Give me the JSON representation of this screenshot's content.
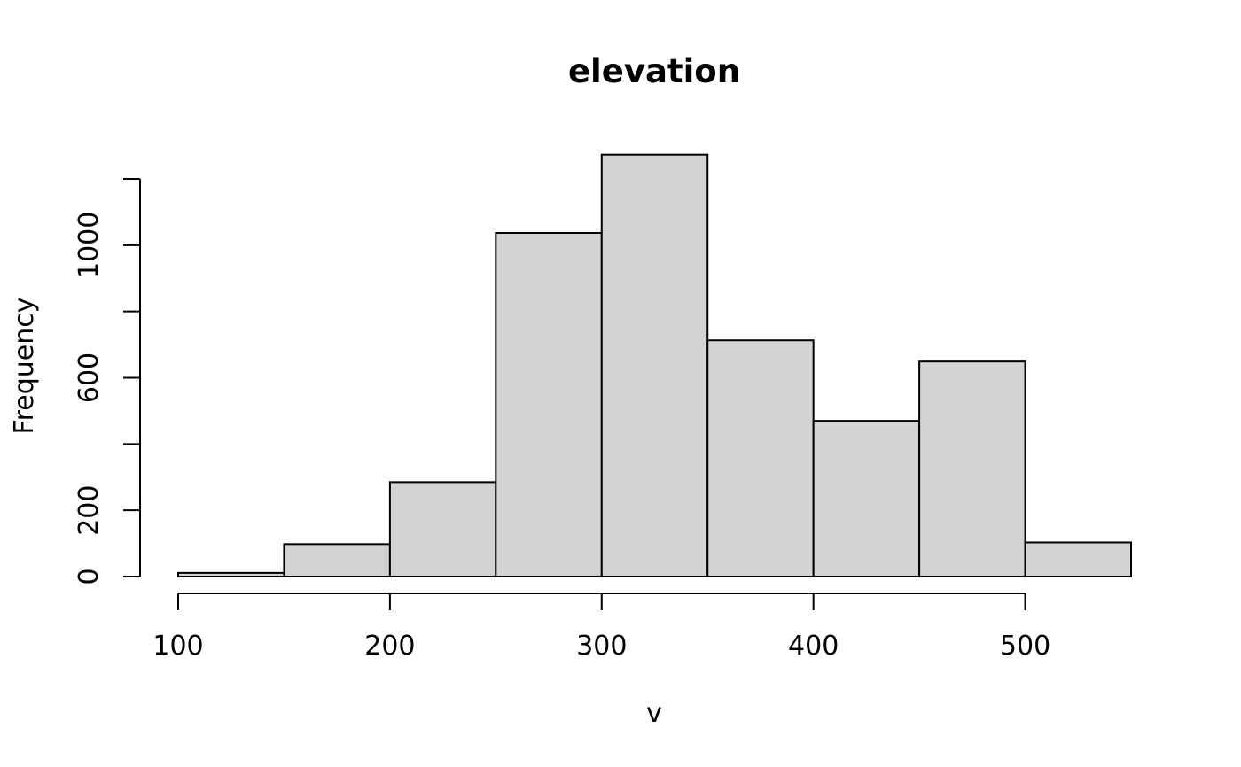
{
  "chart_data": {
    "type": "bar",
    "title": "elevation",
    "xlabel": "v",
    "ylabel": "Frequency",
    "bin_edges": [
      100,
      150,
      200,
      250,
      300,
      350,
      400,
      450,
      500,
      550
    ],
    "values": [
      11,
      98,
      285,
      1037,
      1273,
      713,
      470,
      649,
      103
    ],
    "xlim": [
      100,
      550
    ],
    "ylim": [
      0,
      1200
    ],
    "x_ticks": [
      100,
      200,
      300,
      400,
      500
    ],
    "y_ticks": [
      0,
      200,
      600,
      1000
    ],
    "y_tick_marks": [
      0,
      200,
      400,
      600,
      800,
      1000,
      1200
    ],
    "grid": false,
    "colors": {
      "bar_fill": "#d3d3d3",
      "bar_stroke": "#000000"
    }
  }
}
